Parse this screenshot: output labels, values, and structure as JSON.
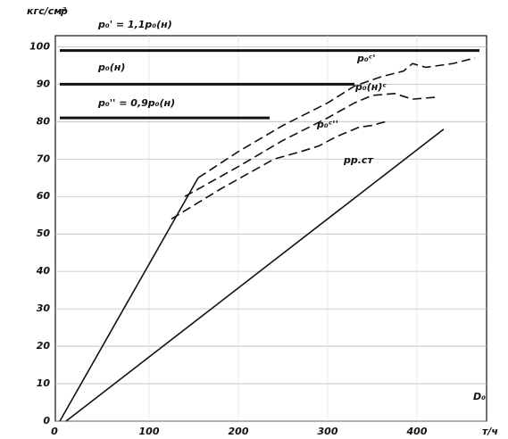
{
  "chart_data": {
    "type": "line",
    "y_unit": "кгс/см²",
    "y_label": "p",
    "x_label": "D₀",
    "x_unit": "т/ч",
    "xlim": [
      0,
      478
    ],
    "xticks": [
      0,
      100,
      200,
      300,
      400
    ],
    "ylim": [
      0,
      102
    ],
    "yticks": [
      0,
      10,
      20,
      30,
      40,
      50,
      60,
      70,
      80,
      90,
      100
    ],
    "grid": true,
    "series": [
      {
        "name": "p₀' = 1,1p₀(н)",
        "color": "#111",
        "style": "solid",
        "width": 3,
        "x": [
          0,
          470
        ],
        "values": [
          99,
          99
        ]
      },
      {
        "name": "p₀(н)",
        "color": "#111",
        "style": "solid",
        "width": 3,
        "x": [
          0,
          330
        ],
        "values": [
          90,
          90
        ]
      },
      {
        "name": "p₀'' = 0,9p₀(н)",
        "color": "#111",
        "style": "solid",
        "width": 3,
        "x": [
          0,
          235
        ],
        "values": [
          81,
          81
        ]
      },
      {
        "name": "p₀ᶜ'",
        "color": "#111",
        "style": "dashed",
        "width": 1.6,
        "x": [
          155,
          200,
          250,
          300,
          330,
          360,
          385,
          395,
          410,
          440,
          465
        ],
        "values": [
          65,
          72,
          79,
          85,
          89.5,
          92,
          93.5,
          95.5,
          94.5,
          95.5,
          97
        ]
      },
      {
        "name": "p₀(н)ᶜ",
        "color": "#111",
        "style": "dashed",
        "width": 1.6,
        "x": [
          140,
          200,
          250,
          300,
          330,
          350,
          375,
          395,
          420
        ],
        "values": [
          60,
          68,
          75,
          81,
          85,
          87,
          87.5,
          86,
          86.5
        ]
      },
      {
        "name": "p₀ᶜ''",
        "color": "#111",
        "style": "dashed",
        "width": 1.6,
        "x": [
          125,
          180,
          240,
          270,
          290,
          310,
          335,
          350,
          365
        ],
        "values": [
          54,
          62,
          70,
          72,
          73.5,
          76,
          78.5,
          79,
          80
        ]
      },
      {
        "name": "pр.ст",
        "color": "#111",
        "style": "solid",
        "width": 1.6,
        "x": [
          7,
          430
        ],
        "values": [
          0,
          78
        ]
      },
      {
        "color": "#111",
        "style": "solid",
        "width": 1.6,
        "x": [
          0,
          155
        ],
        "values": [
          0,
          65
        ]
      }
    ]
  }
}
